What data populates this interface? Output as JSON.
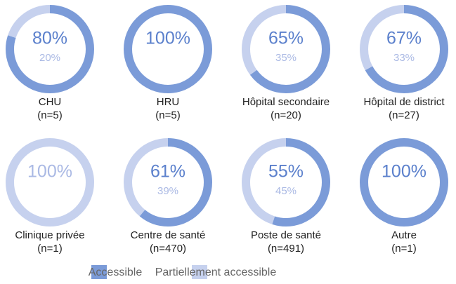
{
  "chart_data": {
    "type": "donut",
    "categories": [
      "CHU",
      "HRU",
      "Hôpital secondaire",
      "Hôpital de district",
      "Clinique privée",
      "Centre de santé",
      "Poste de santé",
      "Autre"
    ],
    "category_notes": [
      "(n=5)",
      "(n=5)",
      "(n=20)",
      "(n=27)",
      "(n=1)",
      "(n=470)",
      "(n=491)",
      "(n=1)"
    ],
    "series": [
      {
        "name": "Accessible",
        "color": "#7b9bd8",
        "label_color": "#5b80cc",
        "values": [
          80,
          100,
          65,
          67,
          0,
          61,
          55,
          100
        ],
        "value_labels": [
          "80%",
          "100%",
          "65%",
          "67%",
          null,
          "61%",
          "55%",
          "100%"
        ]
      },
      {
        "name": "Partiellement accessible",
        "color": "#c6d1ee",
        "label_color": "#aab9e4",
        "values": [
          20,
          0,
          35,
          33,
          100,
          39,
          45,
          0
        ],
        "value_labels": [
          "20%",
          null,
          "35%",
          "33%",
          "100%",
          "39%",
          "45%",
          null
        ]
      }
    ],
    "legend": "bottom"
  }
}
